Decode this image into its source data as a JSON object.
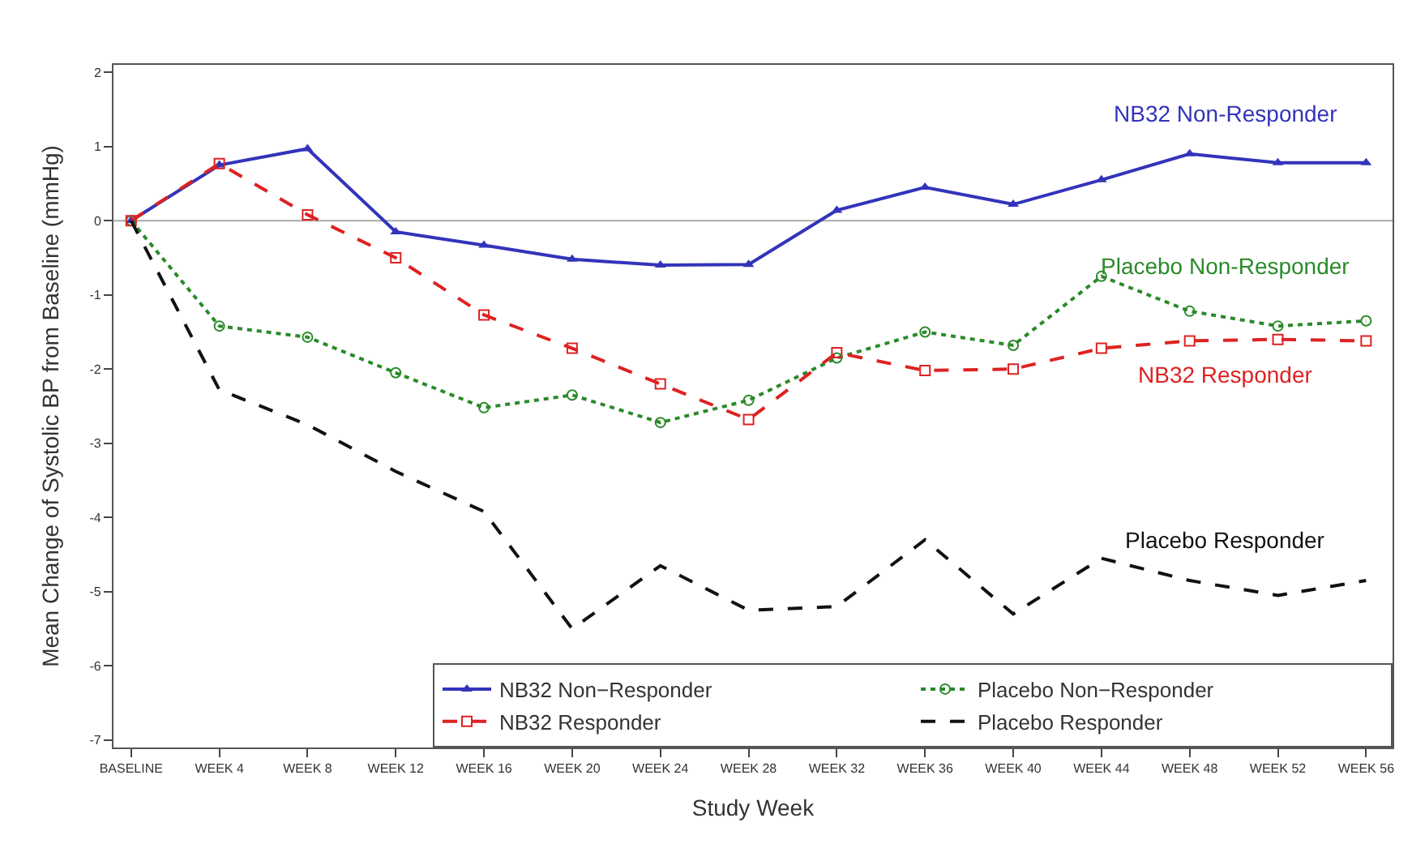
{
  "chart_data": {
    "type": "line",
    "xlabel": "Study Week",
    "ylabel": "Mean Change of Systolic BP from Baseline (mmHg)",
    "categories": [
      "BASELINE",
      "WEEK 4",
      "WEEK 8",
      "WEEK 12",
      "WEEK 16",
      "WEEK 20",
      "WEEK 24",
      "WEEK 28",
      "WEEK 32",
      "WEEK 36",
      "WEEK 40",
      "WEEK 44",
      "WEEK 48",
      "WEEK 52",
      "WEEK 56"
    ],
    "series": [
      {
        "name": "NB32 Non−Responder",
        "color": "#3333bb",
        "marker": "triangle",
        "line_style": "solid",
        "values": [
          0,
          0.75,
          0.97,
          -0.15,
          -0.33,
          -0.52,
          -0.6,
          -0.59,
          0.14,
          0.45,
          0.22,
          0.55,
          0.9,
          0.78,
          0.78
        ]
      },
      {
        "name": "Placebo Non−Responder",
        "color": "#2a8a2a",
        "marker": "circle",
        "line_style": "dotted",
        "values": [
          0,
          -1.42,
          -1.57,
          -2.05,
          -2.52,
          -2.35,
          -2.72,
          -2.42,
          -1.85,
          -1.5,
          -1.68,
          -0.75,
          -1.22,
          -1.42,
          -1.35
        ]
      },
      {
        "name": "NB32 Responder",
        "color": "#dd2222",
        "marker": "square",
        "line_style": "dashed",
        "values": [
          0,
          0.77,
          0.08,
          -0.5,
          -1.27,
          -1.72,
          -2.2,
          -2.68,
          -1.78,
          -2.02,
          -2.0,
          -1.72,
          -1.62,
          -1.6,
          -1.62
        ]
      },
      {
        "name": "Placebo Responder",
        "color": "#111111",
        "marker": "none",
        "line_style": "dashed",
        "values": [
          0,
          -2.28,
          -2.75,
          -3.38,
          -3.92,
          -5.5,
          -4.65,
          -5.25,
          -5.2,
          -4.3,
          -5.3,
          -4.55,
          -4.85,
          -5.05,
          -4.85
        ]
      }
    ],
    "annotations": [
      "NB32 Non-Responder",
      "Placebo Non-Responder",
      "NB32 Responder",
      "Placebo Responder"
    ],
    "ref_lines": [
      {
        "axis": "y",
        "value": 0,
        "color": "#aaaaaa"
      }
    ],
    "ylim": [
      -7.1,
      2.1
    ],
    "yticks": [
      -7,
      -6,
      -5,
      -4,
      -3,
      -2,
      -1,
      0,
      1,
      2
    ],
    "grid": false,
    "legend": "bottom right"
  }
}
